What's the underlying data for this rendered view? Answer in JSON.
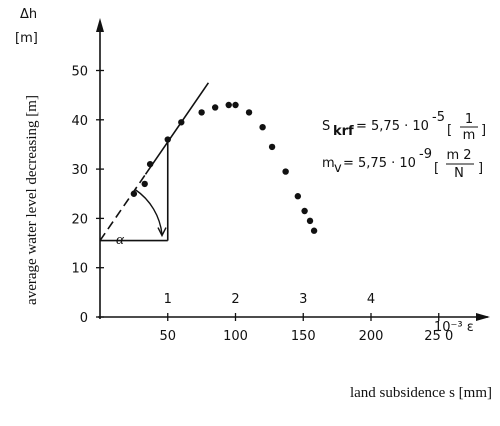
{
  "chart_data": {
    "type": "scatter",
    "title": "",
    "xlabel": "land subsidence s [mm]",
    "ylabel": "average water level decreasing [m]",
    "y_unit_label": "[m]",
    "y_symbol": "Δh",
    "xlim": [
      0,
      280
    ],
    "ylim": [
      0,
      60
    ],
    "x_ticks": [
      50,
      100,
      150,
      200,
      250
    ],
    "x_tick_labels": [
      "50",
      "100",
      "150",
      "200",
      "25 0"
    ],
    "y_ticks": [
      0,
      10,
      20,
      30,
      40,
      50
    ],
    "strain_ticks": [
      50,
      100,
      150,
      200
    ],
    "strain_tick_labels": [
      "1",
      "2",
      "3",
      "4"
    ],
    "strain_axis_label": "10⁻³ ε",
    "grid": false,
    "series": [
      {
        "values": [
          {
            "x": 25,
            "y": 25
          },
          {
            "x": 33,
            "y": 27
          },
          {
            "x": 37,
            "y": 31
          },
          {
            "x": 50,
            "y": 36
          },
          {
            "x": 60,
            "y": 39.5
          },
          {
            "x": 75,
            "y": 41.5
          },
          {
            "x": 85,
            "y": 42.5
          },
          {
            "x": 95,
            "y": 43
          },
          {
            "x": 100,
            "y": 43
          },
          {
            "x": 110,
            "y": 41.5
          },
          {
            "x": 120,
            "y": 38.5
          },
          {
            "x": 127,
            "y": 34.5
          },
          {
            "x": 137,
            "y": 29.5
          },
          {
            "x": 146,
            "y": 24.5
          },
          {
            "x": 151,
            "y": 21.5
          },
          {
            "x": 155,
            "y": 19.5
          },
          {
            "x": 158,
            "y": 17.5
          }
        ]
      }
    ],
    "fit_line": {
      "x1": 0,
      "y1": 15.5,
      "x2": 80,
      "y2": 47.5
    },
    "triangle": {
      "x0": 0,
      "y0": 15.5,
      "x1": 50,
      "y1": 35.5
    },
    "angle_label": "α",
    "annotations": {
      "skrf": "S krf = 5,75 · 10⁻⁵ [1/m]",
      "skrf_main": "S",
      "skrf_sub": "krf",
      "skrf_value": "= 5,75 · 10",
      "skrf_exp": "-5",
      "skrf_num": "1",
      "skrf_den": "m",
      "mv": "m v = 5,75 · 10⁻⁹ [m²/N]",
      "mv_main": "m",
      "mv_sub": "v",
      "mv_value": "= 5,75 · 10",
      "mv_exp": "-9",
      "mv_num": "m 2",
      "mv_den": "N"
    }
  }
}
